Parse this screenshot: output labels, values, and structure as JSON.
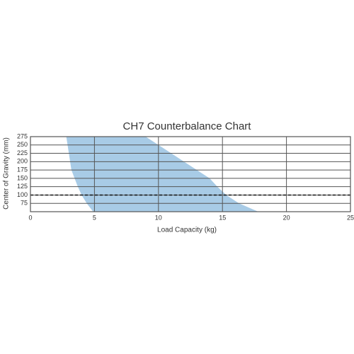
{
  "chart_data": {
    "type": "area",
    "title": "CH7 Counterbalance Chart",
    "x_label": "Load Capacity (kg)",
    "y_label": "Center of Gravity (mm)",
    "xlim": [
      0,
      25
    ],
    "ylim": [
      50,
      275
    ],
    "xticks": [
      0,
      5,
      10,
      15,
      20,
      25
    ],
    "yticks": [
      75,
      100,
      125,
      150,
      175,
      200,
      225,
      250,
      275
    ],
    "grid": true,
    "color": "#a8cbe6",
    "boundaries": [
      {
        "x": [
          2.8,
          3.0,
          3.2,
          3.7,
          4.0,
          4.4,
          4.9
        ],
        "y": [
          275,
          225,
          175,
          125,
          100,
          75,
          50
        ]
      },
      {
        "x": [
          9.0,
          10.0,
          11.0,
          12.0,
          13.0,
          14.0,
          14.6,
          15.3,
          16.3,
          17.8
        ],
        "y": [
          275,
          250,
          225,
          200,
          175,
          150,
          125,
          100,
          75,
          50
        ]
      }
    ],
    "reference_line": 100
  }
}
